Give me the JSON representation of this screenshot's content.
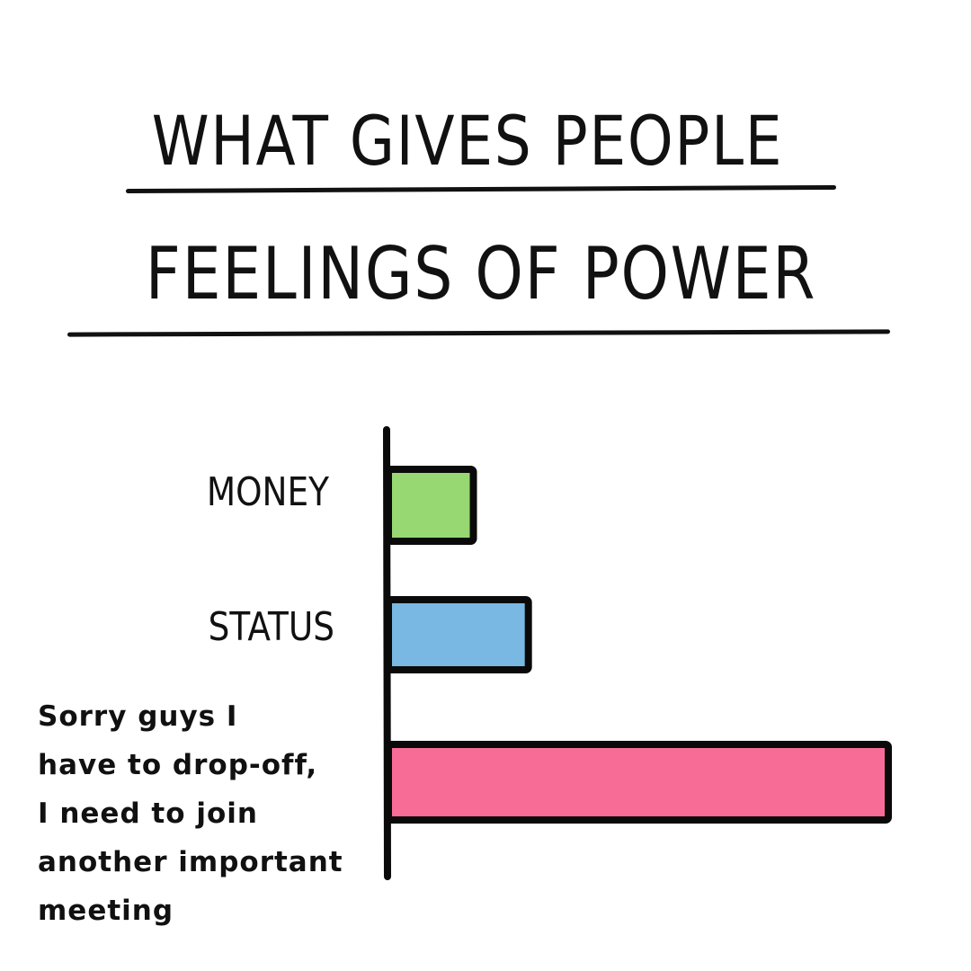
{
  "chart_data": {
    "type": "bar",
    "orientation": "horizontal",
    "title_lines": [
      "WHAT GIVES PEOPLE",
      "FEELINGS OF POWER"
    ],
    "categories": [
      "MONEY",
      "STATUS",
      "Sorry guys I have to drop-off, I need to join another important meeting"
    ],
    "category_lines": [
      [
        "MONEY"
      ],
      [
        "STATUS"
      ],
      [
        "Sorry guys I",
        "have to drop-off,",
        "I need to join",
        "another important",
        "meeting"
      ]
    ],
    "values": [
      17,
      28,
      100
    ],
    "colors": [
      "#97d873",
      "#79b8e3",
      "#f76c96"
    ],
    "xlabel": "",
    "ylabel": "",
    "xlim": [
      0,
      100
    ],
    "grid": false,
    "legend": "none"
  }
}
